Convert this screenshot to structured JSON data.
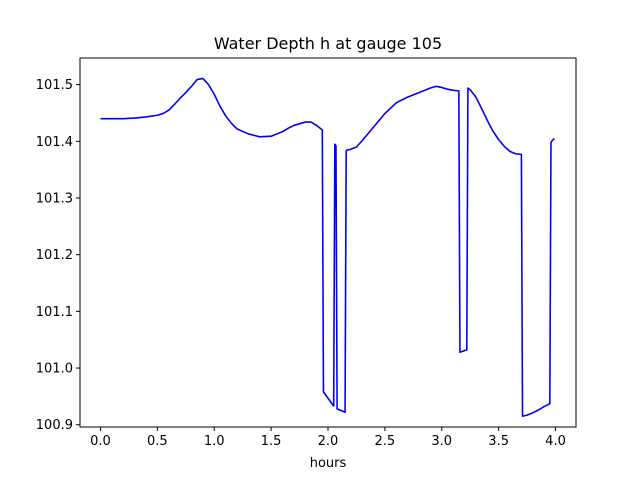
{
  "chart_data": {
    "type": "line",
    "title": "Water Depth h at gauge 105",
    "xlabel": "hours",
    "ylabel": "",
    "xlim": [
      -0.18,
      4.18
    ],
    "ylim": [
      100.896,
      101.547
    ],
    "xticks": [
      0.0,
      0.5,
      1.0,
      1.5,
      2.0,
      2.5,
      3.0,
      3.5,
      4.0
    ],
    "xtick_labels": [
      "0.0",
      "0.5",
      "1.0",
      "1.5",
      "2.0",
      "2.5",
      "3.0",
      "3.5",
      "4.0"
    ],
    "yticks": [
      100.9,
      101.0,
      101.1,
      101.2,
      101.3,
      101.4,
      101.5
    ],
    "ytick_labels": [
      "100.9",
      "101.0",
      "101.1",
      "101.2",
      "101.3",
      "101.4",
      "101.5"
    ],
    "grid": false,
    "series": [
      {
        "color": "#0000ff",
        "x": [
          0.0,
          0.1,
          0.2,
          0.3,
          0.4,
          0.5,
          0.55,
          0.6,
          0.65,
          0.7,
          0.75,
          0.8,
          0.85,
          0.9,
          0.95,
          1.0,
          1.05,
          1.1,
          1.15,
          1.2,
          1.3,
          1.4,
          1.5,
          1.6,
          1.65,
          1.7,
          1.8,
          1.85,
          1.9,
          1.95,
          1.96,
          2.05,
          2.06,
          2.07,
          2.08,
          2.15,
          2.16,
          2.2,
          2.25,
          2.3,
          2.4,
          2.5,
          2.6,
          2.7,
          2.8,
          2.9,
          2.95,
          3.0,
          3.05,
          3.1,
          3.15,
          3.16,
          3.22,
          3.23,
          3.25,
          3.3,
          3.35,
          3.4,
          3.45,
          3.5,
          3.55,
          3.6,
          3.65,
          3.7,
          3.71,
          3.75,
          3.8,
          3.85,
          3.9,
          3.95,
          3.96,
          3.97,
          3.99
        ],
        "y": [
          101.44,
          101.44,
          101.44,
          101.441,
          101.443,
          101.446,
          101.449,
          101.455,
          101.465,
          101.476,
          101.486,
          101.497,
          101.509,
          101.511,
          101.5,
          101.483,
          101.462,
          101.445,
          101.432,
          101.422,
          101.413,
          101.408,
          101.409,
          101.417,
          101.423,
          101.428,
          101.434,
          101.434,
          101.428,
          101.42,
          100.958,
          100.933,
          101.395,
          101.392,
          100.928,
          100.922,
          101.384,
          101.386,
          101.39,
          101.401,
          101.425,
          101.449,
          101.468,
          101.478,
          101.486,
          101.494,
          101.497,
          101.495,
          101.492,
          101.49,
          101.489,
          101.028,
          101.032,
          101.494,
          101.491,
          101.478,
          101.458,
          101.437,
          101.418,
          101.403,
          101.391,
          101.382,
          101.378,
          101.377,
          100.915,
          100.917,
          100.921,
          100.926,
          100.932,
          100.937,
          101.398,
          101.401,
          101.405
        ]
      }
    ]
  }
}
